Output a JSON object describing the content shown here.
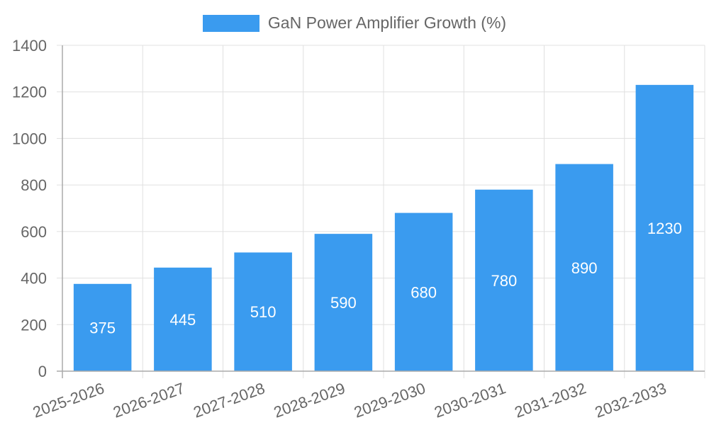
{
  "chart_data": {
    "type": "bar",
    "title": "",
    "categories": [
      "2025-2026",
      "2026-2027",
      "2027-2028",
      "2028-2029",
      "2029-2030",
      "2030-2031",
      "2031-2032",
      "2032-2033"
    ],
    "series": [
      {
        "name": "GaN Power Amplifier Growth (%)",
        "color": "#3a9bef",
        "values": [
          375,
          445,
          510,
          590,
          680,
          780,
          890,
          1230
        ]
      }
    ],
    "xlabel": "",
    "ylabel": "",
    "ylim": [
      0,
      1400
    ],
    "yticks": [
      0,
      200,
      400,
      600,
      800,
      1000,
      1200,
      1400
    ],
    "grid": true,
    "legend_position": "top",
    "data_labels": true
  },
  "legend": {
    "label": "GaN Power Amplifier Growth (%)",
    "color": "#3a9bef"
  },
  "colors": {
    "bar": "#3a9bef",
    "grid": "#e0e0e0",
    "axis": "#aaaaaa",
    "text": "#666666",
    "bar_label": "#ffffff"
  }
}
